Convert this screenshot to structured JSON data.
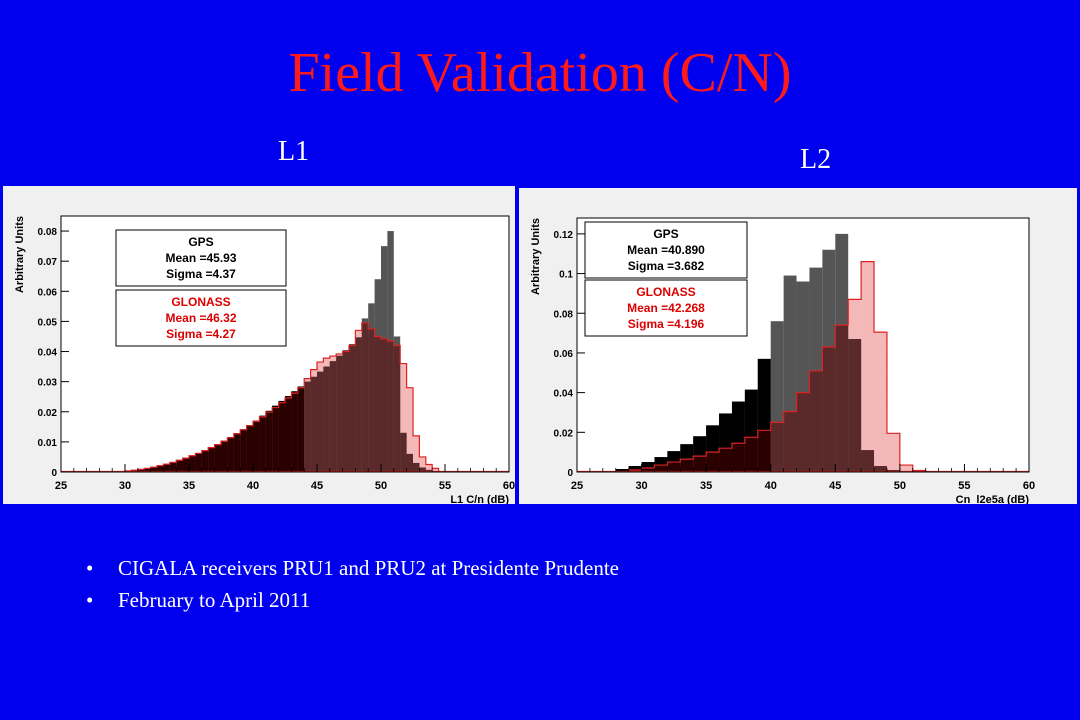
{
  "slide": {
    "title": "Field Validation (C/N)",
    "panel_labels": [
      "L1",
      "L2"
    ],
    "bullets": [
      "CIGALA receivers PRU1 and PRU2 at Presidente Prudente",
      "February to April 2011"
    ],
    "bullet_glyph": "•"
  },
  "colors": {
    "background": "#0000ee",
    "title": "#ff1a1a",
    "gps_fill": "#555555",
    "glonass_fill": "#f4b8b8",
    "glonass_line": "#dd2222",
    "overlap_fill": "#5a2a2a",
    "tail_fill": "#2a0000"
  },
  "chart_data": [
    {
      "type": "bar",
      "panel": "L1",
      "ylabel": "Arbitrary Units",
      "xlabel": "L1 C/n (dB)",
      "xlim": [
        25,
        60
      ],
      "ylim": [
        0,
        0.085
      ],
      "xticks": [
        25,
        30,
        35,
        40,
        45,
        50,
        55,
        60
      ],
      "yticks": [
        0,
        0.01,
        0.02,
        0.03,
        0.04,
        0.05,
        0.06,
        0.07,
        0.08
      ],
      "ytick_labels": [
        "0",
        "0.01",
        "0.02",
        "0.03",
        "0.04",
        "0.05",
        "0.06",
        "0.07",
        "0.08"
      ],
      "bin_width": 0.5,
      "series": [
        {
          "name": "GPS",
          "stats": [
            "Mean =45.93",
            "Sigma =4.37"
          ],
          "bins": [
            [
              30,
              0.0005
            ],
            [
              30.5,
              0.0007
            ],
            [
              31,
              0.001
            ],
            [
              31.5,
              0.0013
            ],
            [
              32,
              0.0017
            ],
            [
              32.5,
              0.0022
            ],
            [
              33,
              0.0027
            ],
            [
              33.5,
              0.0033
            ],
            [
              34,
              0.004
            ],
            [
              34.5,
              0.0047
            ],
            [
              35,
              0.0055
            ],
            [
              35.5,
              0.0063
            ],
            [
              36,
              0.0072
            ],
            [
              36.5,
              0.0082
            ],
            [
              37,
              0.0093
            ],
            [
              37.5,
              0.0104
            ],
            [
              38,
              0.0116
            ],
            [
              38.5,
              0.0129
            ],
            [
              39,
              0.0142
            ],
            [
              39.5,
              0.0156
            ],
            [
              40,
              0.0171
            ],
            [
              40.5,
              0.0187
            ],
            [
              41,
              0.0203
            ],
            [
              41.5,
              0.022
            ],
            [
              42,
              0.0236
            ],
            [
              42.5,
              0.0252
            ],
            [
              43,
              0.0268
            ],
            [
              43.5,
              0.0284
            ],
            [
              44,
              0.03
            ],
            [
              44.5,
              0.0316
            ],
            [
              45,
              0.0333
            ],
            [
              45.5,
              0.035
            ],
            [
              46,
              0.0368
            ],
            [
              46.5,
              0.0386
            ],
            [
              47,
              0.0405
            ],
            [
              47.5,
              0.0425
            ],
            [
              48,
              0.0447
            ],
            [
              48.5,
              0.051
            ],
            [
              49,
              0.056
            ],
            [
              49.5,
              0.064
            ],
            [
              50,
              0.075
            ],
            [
              50.5,
              0.08
            ],
            [
              51,
              0.045
            ],
            [
              51.5,
              0.013
            ],
            [
              52,
              0.006
            ],
            [
              52.5,
              0.003
            ],
            [
              53,
              0.0015
            ],
            [
              53.5,
              0.0007
            ]
          ]
        },
        {
          "name": "GLONASS",
          "stats": [
            "Mean =46.32",
            "Sigma =4.27"
          ],
          "bins": [
            [
              30,
              0.0004
            ],
            [
              30.5,
              0.0006
            ],
            [
              31,
              0.0009
            ],
            [
              31.5,
              0.0012
            ],
            [
              32,
              0.0016
            ],
            [
              32.5,
              0.0021
            ],
            [
              33,
              0.0026
            ],
            [
              33.5,
              0.0032
            ],
            [
              34,
              0.0039
            ],
            [
              34.5,
              0.0046
            ],
            [
              35,
              0.0054
            ],
            [
              35.5,
              0.0062
            ],
            [
              36,
              0.0071
            ],
            [
              36.5,
              0.0081
            ],
            [
              37,
              0.0091
            ],
            [
              37.5,
              0.0102
            ],
            [
              38,
              0.0114
            ],
            [
              38.5,
              0.0127
            ],
            [
              39,
              0.014
            ],
            [
              39.5,
              0.0154
            ],
            [
              40,
              0.0168
            ],
            [
              40.5,
              0.0183
            ],
            [
              41,
              0.0199
            ],
            [
              41.5,
              0.0214
            ],
            [
              42,
              0.023
            ],
            [
              42.5,
              0.0246
            ],
            [
              43,
              0.0262
            ],
            [
              43.5,
              0.028
            ],
            [
              44,
              0.031
            ],
            [
              44.5,
              0.034
            ],
            [
              45,
              0.0365
            ],
            [
              45.5,
              0.0378
            ],
            [
              46,
              0.0385
            ],
            [
              46.5,
              0.0392
            ],
            [
              47,
              0.04
            ],
            [
              47.5,
              0.042
            ],
            [
              48,
              0.047
            ],
            [
              48.5,
              0.0495
            ],
            [
              49,
              0.0475
            ],
            [
              49.5,
              0.045
            ],
            [
              50,
              0.0442
            ],
            [
              50.5,
              0.0435
            ],
            [
              51,
              0.042
            ],
            [
              51.5,
              0.036
            ],
            [
              52,
              0.028
            ],
            [
              52.5,
              0.012
            ],
            [
              53,
              0.005
            ],
            [
              53.5,
              0.0025
            ],
            [
              54,
              0.0012
            ]
          ]
        }
      ]
    },
    {
      "type": "bar",
      "panel": "L2",
      "ylabel": "Arbitrary Units",
      "xlabel": "Cn_l2e5a (dB)",
      "xlim": [
        25,
        60
      ],
      "ylim": [
        0,
        0.128
      ],
      "xticks": [
        25,
        30,
        35,
        40,
        45,
        50,
        55,
        60
      ],
      "yticks": [
        0,
        0.02,
        0.04,
        0.06,
        0.08,
        0.1,
        0.12
      ],
      "ytick_labels": [
        "0",
        "0.02",
        "0.04",
        "0.06",
        "0.08",
        "0.1",
        "0.12"
      ],
      "bin_width": 1,
      "series": [
        {
          "name": "GPS",
          "stats": [
            "Mean =40.890",
            "Sigma =3.682"
          ],
          "bins": [
            [
              28,
              0.0015
            ],
            [
              29,
              0.003
            ],
            [
              30,
              0.005
            ],
            [
              31,
              0.0075
            ],
            [
              32,
              0.0105
            ],
            [
              33,
              0.014
            ],
            [
              34,
              0.018
            ],
            [
              35,
              0.0235
            ],
            [
              36,
              0.0295
            ],
            [
              37,
              0.0355
            ],
            [
              38,
              0.0415
            ],
            [
              39,
              0.057
            ],
            [
              40,
              0.076
            ],
            [
              41,
              0.099
            ],
            [
              42,
              0.096
            ],
            [
              43,
              0.103
            ],
            [
              44,
              0.112
            ],
            [
              45,
              0.12
            ],
            [
              46,
              0.067
            ],
            [
              47,
              0.011
            ],
            [
              48,
              0.003
            ],
            [
              49,
              0.001
            ]
          ]
        },
        {
          "name": "GLONASS",
          "stats": [
            "Mean =42.268",
            "Sigma =4.196"
          ],
          "bins": [
            [
              29,
              0.001
            ],
            [
              30,
              0.002
            ],
            [
              31,
              0.0035
            ],
            [
              32,
              0.005
            ],
            [
              33,
              0.0065
            ],
            [
              34,
              0.008
            ],
            [
              35,
              0.01
            ],
            [
              36,
              0.012
            ],
            [
              37,
              0.0145
            ],
            [
              38,
              0.0175
            ],
            [
              39,
              0.021
            ],
            [
              40,
              0.025
            ],
            [
              41,
              0.0305
            ],
            [
              42,
              0.04
            ],
            [
              43,
              0.051
            ],
            [
              44,
              0.063
            ],
            [
              45,
              0.074
            ],
            [
              46,
              0.087
            ],
            [
              47,
              0.106
            ],
            [
              48,
              0.0705
            ],
            [
              49,
              0.0195
            ],
            [
              50,
              0.0035
            ],
            [
              51,
              0.0008
            ]
          ]
        }
      ]
    }
  ]
}
